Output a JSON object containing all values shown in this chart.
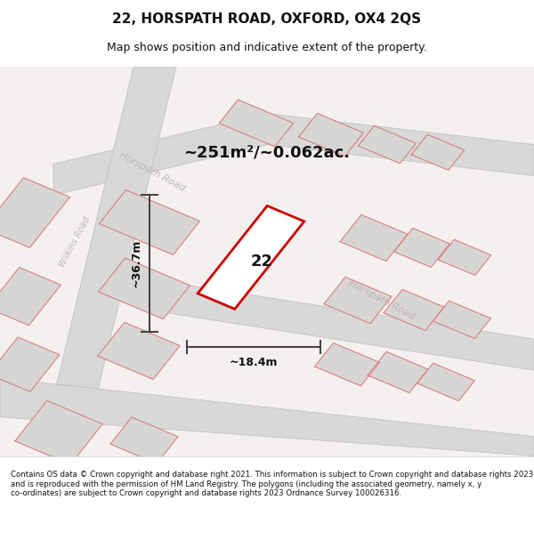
{
  "title": "22, HORSPATH ROAD, OXFORD, OX4 2QS",
  "subtitle": "Map shows position and indicative extent of the property.",
  "footer": "Contains OS data © Crown copyright and database right 2021. This information is subject to Crown copyright and database rights 2023 and is reproduced with the permission of HM Land Registry. The polygons (including the associated geometry, namely x, y co-ordinates) are subject to Crown copyright and database rights 2023 Ordnance Survey 100026316.",
  "area_text": "~251m²/~0.062ac.",
  "width_label": "~18.4m",
  "height_label": "~36.7m",
  "plot_number": "22",
  "bg_color": "#f5f0ee",
  "map_bg": "#f5f0ee",
  "road_color": "#d0d0d0",
  "building_color": "#e0dede",
  "plot_outline_color": "#cc0000",
  "road_label_color": "#aaaaaa",
  "title_color": "#111111",
  "footer_color": "#111111",
  "measure_color": "#444444"
}
